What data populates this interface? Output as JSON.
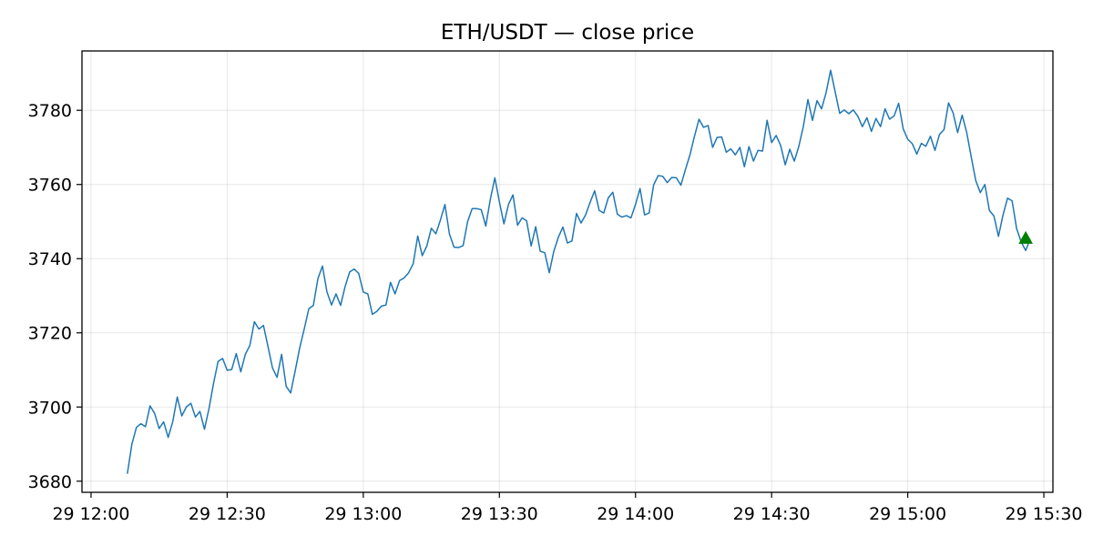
{
  "chart_data": {
    "type": "line",
    "title": "ETH/USDT — close price",
    "xlabel": "",
    "ylabel": "",
    "grid": true,
    "x_range": [
      "2025-03-29T11:58",
      "2025-03-29T15:32"
    ],
    "ylim": [
      3677,
      3796
    ],
    "x_ticks": [
      {
        "t": "2025-03-29T12:00",
        "label": "29 12:00"
      },
      {
        "t": "2025-03-29T12:30",
        "label": "29 12:30"
      },
      {
        "t": "2025-03-29T13:00",
        "label": "29 13:00"
      },
      {
        "t": "2025-03-29T13:30",
        "label": "29 13:30"
      },
      {
        "t": "2025-03-29T14:00",
        "label": "29 14:00"
      },
      {
        "t": "2025-03-29T14:30",
        "label": "29 14:30"
      },
      {
        "t": "2025-03-29T15:00",
        "label": "29 15:00"
      },
      {
        "t": "2025-03-29T15:30",
        "label": "29 15:30"
      }
    ],
    "y_ticks": [
      3680,
      3700,
      3720,
      3740,
      3760,
      3780
    ],
    "line_color": "#1f77b4",
    "marker_color": "#008000",
    "series": [
      {
        "start": "2025-03-29T12:08",
        "step_minutes": 1,
        "values": [
          3682,
          3690,
          3694.5,
          3695.5,
          3694.7,
          3700.3,
          3698.3,
          3694.2,
          3696,
          3691.8,
          3696,
          3702.7,
          3697.6,
          3700,
          3701,
          3697.3,
          3698.8,
          3694,
          3699.6,
          3706.4,
          3712.3,
          3713.1,
          3709.9,
          3710.1,
          3714.4,
          3709.5,
          3714.2,
          3716.6,
          3723,
          3721,
          3722,
          3716.3,
          3710.5,
          3708,
          3714.2,
          3705.6,
          3703.8,
          3709.8,
          3716,
          3721.1,
          3726.5,
          3727.4,
          3734.6,
          3738,
          3731,
          3727.5,
          3730.5,
          3727.4,
          3732.5,
          3736.4,
          3737.2,
          3736,
          3731,
          3730.5,
          3725,
          3725.8,
          3727.2,
          3727.5,
          3733.6,
          3730.5,
          3734.1,
          3734.8,
          3736.2,
          3738.6,
          3746.1,
          3740.8,
          3743.4,
          3748.2,
          3746.7,
          3750.4,
          3754.6,
          3746.6,
          3743.1,
          3743,
          3743.5,
          3750,
          3753.5,
          3753.5,
          3753.2,
          3748.8,
          3756,
          3761.8,
          3755.3,
          3749.4,
          3754.6,
          3757.2,
          3749,
          3751,
          3750.2,
          3743.4,
          3748.6,
          3742,
          3741.6,
          3736.2,
          3742,
          3745.8,
          3748.5,
          3744.2,
          3744.8,
          3752.2,
          3749.6,
          3751.8,
          3755.2,
          3758.3,
          3753,
          3752.3,
          3756.4,
          3757.9,
          3752,
          3751.2,
          3751.6,
          3751,
          3754.6,
          3758.9,
          3751.8,
          3752.3,
          3759.9,
          3762.4,
          3762.2,
          3760.5,
          3761.9,
          3761.8,
          3759.8,
          3764,
          3768,
          3773,
          3777.6,
          3775.4,
          3775.9,
          3770,
          3772.7,
          3772.8,
          3768.7,
          3769.6,
          3768,
          3770,
          3764.8,
          3770.2,
          3766.3,
          3769.2,
          3769,
          3777.3,
          3771.3,
          3773.2,
          3770.5,
          3765.3,
          3769.5,
          3766.3,
          3770.3,
          3775.7,
          3782.9,
          3777.3,
          3782.6,
          3780.4,
          3784.7,
          3790.8,
          3785,
          3779.2,
          3780.1,
          3779.1,
          3780.1,
          3778.4,
          3775.6,
          3778,
          3774.3,
          3777.8,
          3775.6,
          3780.4,
          3777.6,
          3778.5,
          3781.9,
          3775,
          3772.2,
          3771,
          3768.2,
          3771.1,
          3770.3,
          3773,
          3769.2,
          3773.5,
          3774.8,
          3782,
          3779.3,
          3774,
          3778.7,
          3774,
          3767.4,
          3761,
          3757.8,
          3760,
          3753,
          3751.5,
          3746,
          3751.8,
          3756.3,
          3755.6,
          3748.1,
          3744.5,
          3742.2,
          3745.3
        ]
      }
    ],
    "markers": [
      {
        "t": "2025-03-29T15:26",
        "value": 3745.5,
        "shape": "triangle-up"
      }
    ]
  }
}
